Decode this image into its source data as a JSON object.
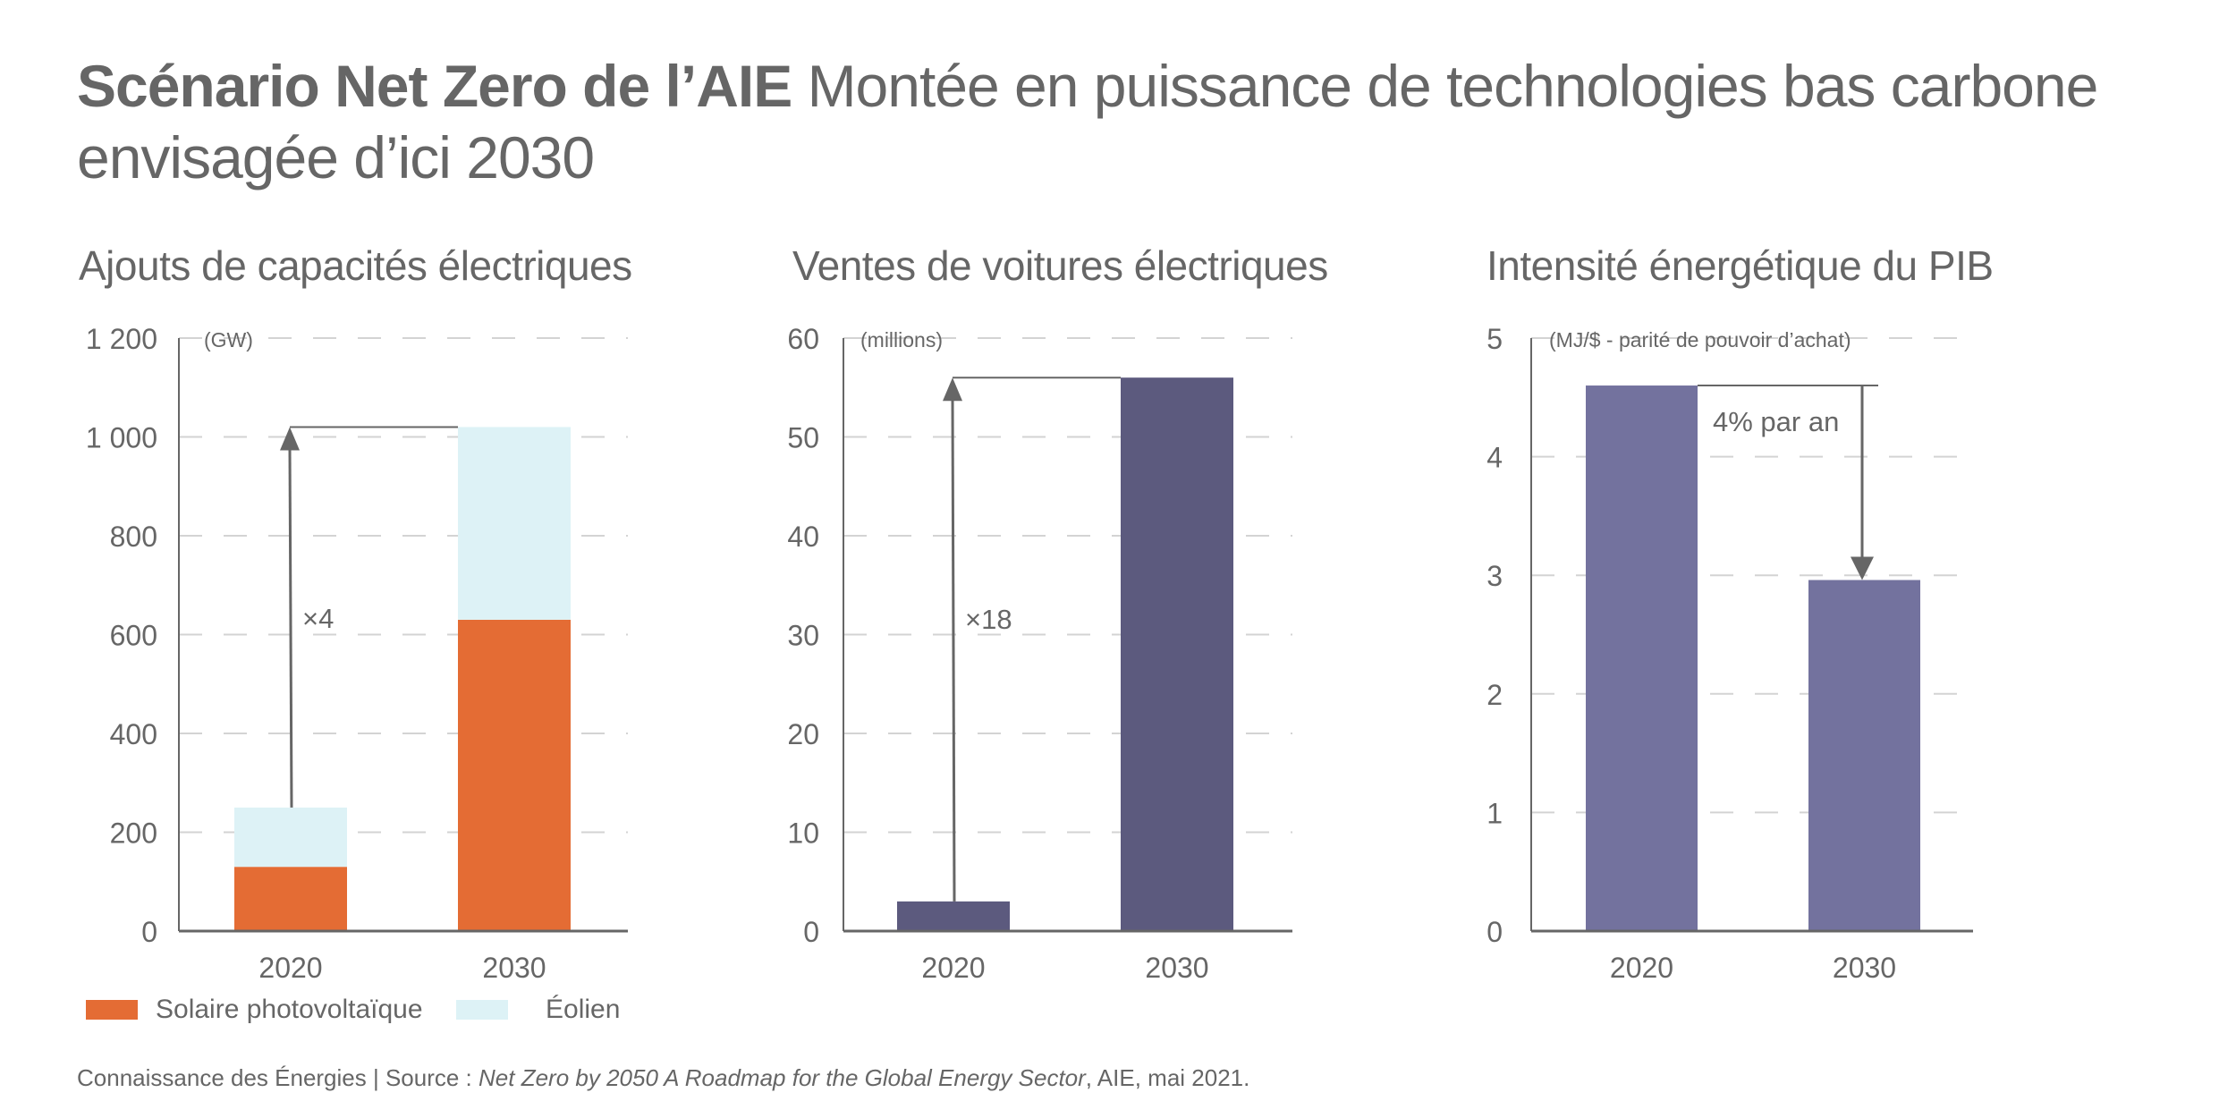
{
  "header": {
    "title_bold": "Scénario Net Zero de l’AIE",
    "title_light": " Montée en puissance de technologies bas carbone envisagée d’ici 2030"
  },
  "footer": {
    "credit": "Connaissance des Énergies | Source : ",
    "source_italic": "Net Zero by 2050 A Roadmap for the Global Energy Sector",
    "source_rest": ", AIE, mai 2021."
  },
  "colors": {
    "solar": "#E46C34",
    "wind": "#DDF2F6",
    "ev": "#5C5A7E",
    "intensity": "#73729E",
    "text": "#666666",
    "grid": "#D3D3D3"
  },
  "chart_data": [
    {
      "type": "bar",
      "stacked": true,
      "title": "Ajouts de capacités électriques",
      "unit_label": "(GW)",
      "categories": [
        "2020",
        "2030"
      ],
      "series": [
        {
          "name": "Solaire photovoltaïque",
          "values": [
            130,
            630
          ]
        },
        {
          "name": "Éolien",
          "values": [
            120,
            390
          ]
        }
      ],
      "ylim": [
        0,
        1200
      ],
      "yticks": [
        0,
        200,
        400,
        600,
        800,
        1000,
        1200
      ],
      "ytick_labels": [
        "0",
        "200",
        "400",
        "600",
        "800",
        "1 000",
        "1 200"
      ],
      "grid": true,
      "annotation": "×4",
      "legend": "bottom"
    },
    {
      "type": "bar",
      "title": "Ventes de voitures électriques",
      "unit_label": "(millions)",
      "categories": [
        "2020",
        "2030"
      ],
      "values": [
        3,
        56
      ],
      "ylim": [
        0,
        60
      ],
      "yticks": [
        0,
        10,
        20,
        30,
        40,
        50,
        60
      ],
      "ytick_labels": [
        "0",
        "10",
        "20",
        "30",
        "40",
        "50",
        "60"
      ],
      "grid": true,
      "annotation": "×18"
    },
    {
      "type": "bar",
      "title": "Intensité énergétique du PIB",
      "unit_label": "(MJ/$ - parité de pouvoir d’achat)",
      "categories": [
        "2020",
        "2030"
      ],
      "values": [
        4.6,
        2.96
      ],
      "ylim": [
        0,
        5
      ],
      "yticks": [
        0,
        1,
        2,
        3,
        4,
        5
      ],
      "ytick_labels": [
        "0",
        "1",
        "2",
        "3",
        "4",
        "5"
      ],
      "grid": true,
      "annotation": "4% par an"
    }
  ]
}
